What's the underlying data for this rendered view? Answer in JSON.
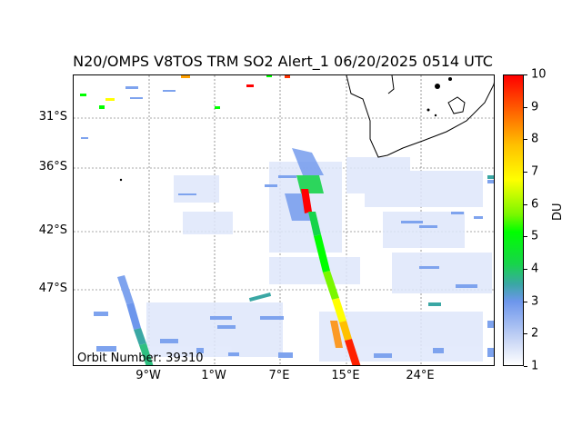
{
  "title": "N20/OMPS V8TOS TRM SO2 Alert_1 06/20/2025 0514 UTC",
  "orbit_label": "Orbit Number: 39310",
  "lat_labels": [
    "31°S",
    "36°S",
    "42°S",
    "47°S"
  ],
  "lon_labels": [
    "9°W",
    "1°W",
    "7°E",
    "15°E",
    "24°E"
  ],
  "colorbar": {
    "unit": "DU",
    "ticks": [
      "1",
      "2",
      "3",
      "4",
      "5",
      "6",
      "7",
      "8",
      "9",
      "10"
    ],
    "range": [
      1,
      10
    ]
  },
  "colors": {
    "low": "#ffffff",
    "blue": "#6d96ec",
    "teal": "#3aa7a4",
    "green": "#00ff00",
    "yellow": "#ffff00",
    "orange": "#ff8c00",
    "red": "#ff0000"
  }
}
